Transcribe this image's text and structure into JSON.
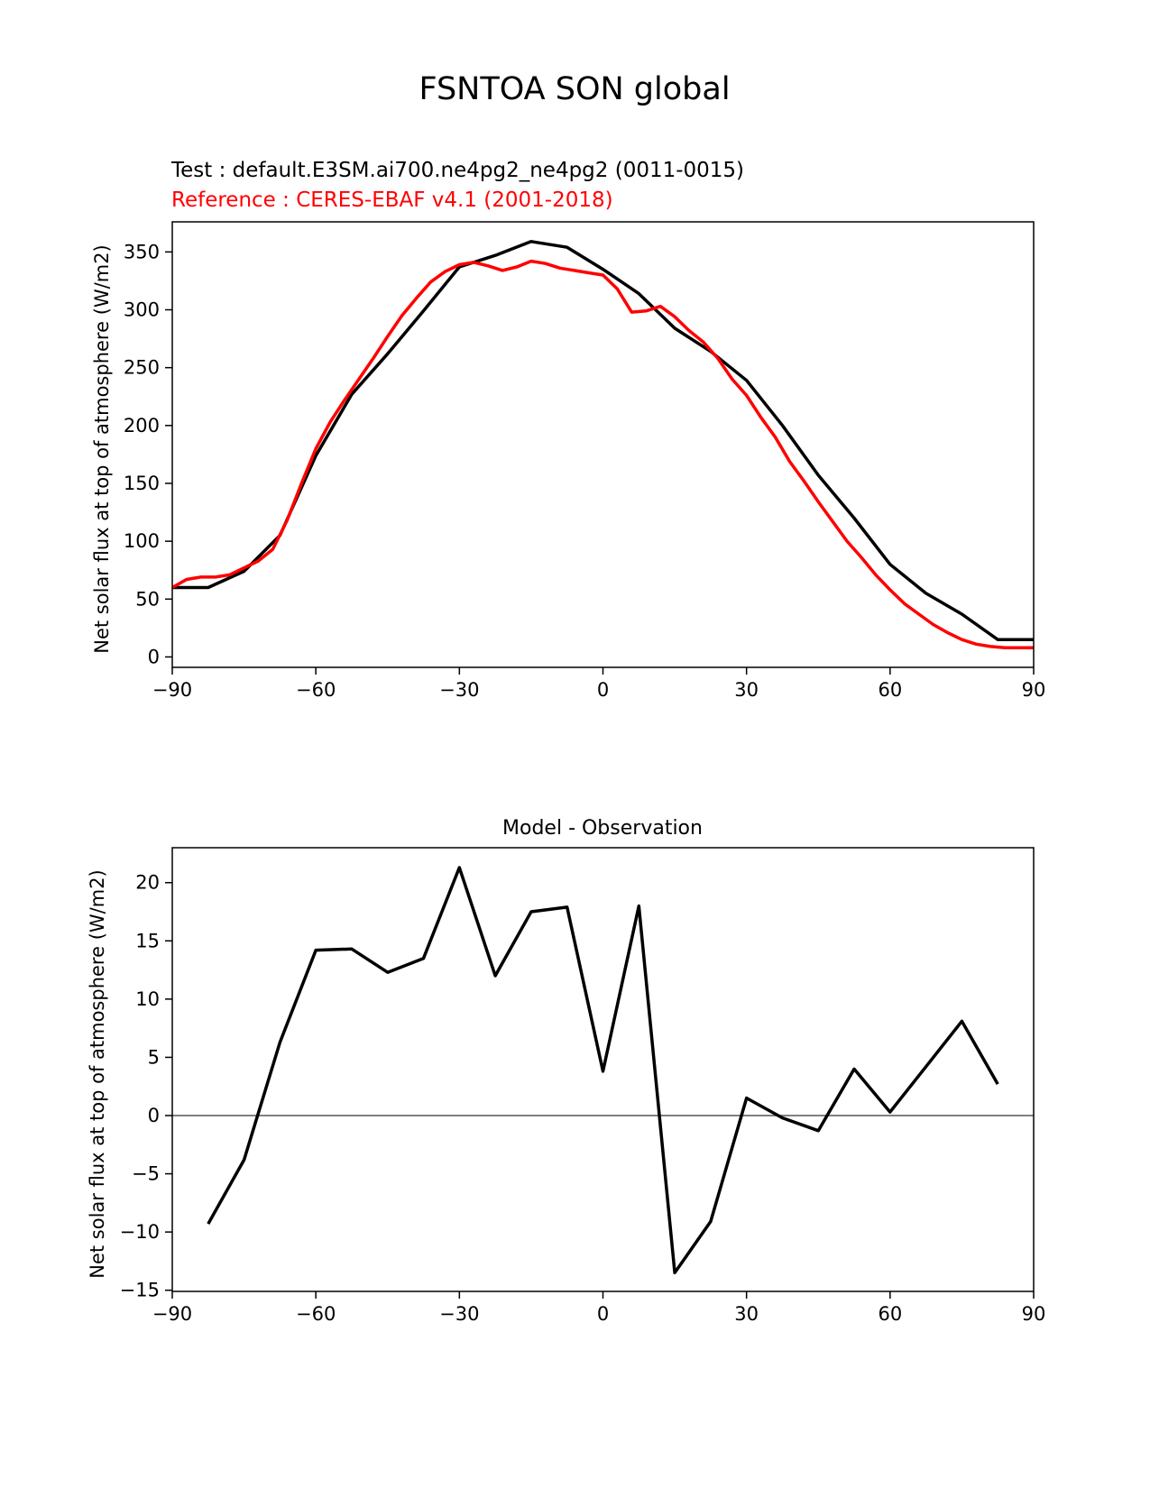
{
  "figure_title": "FSNTOA SON global",
  "test_label": "Test : default.E3SM.ai700.ne4pg2_ne4pg2 (0011-0015)",
  "reference_label": "Reference : CERES-EBAF v4.1 (2001-2018)",
  "colors": {
    "test": "#000000",
    "reference": "#ff0000",
    "zero_line": "#808080"
  },
  "chart_data": [
    {
      "type": "line",
      "title": "",
      "ylabel": "Net solar flux at top of atmosphere (W/m2)",
      "xlim": [
        -90,
        90
      ],
      "ylim": [
        -9,
        376
      ],
      "xticks": [
        -90,
        -60,
        -30,
        0,
        30,
        60,
        90
      ],
      "xtick_labels": [
        "−90",
        "−60",
        "−30",
        "0",
        "30",
        "60",
        "90"
      ],
      "yticks": [
        0,
        50,
        100,
        150,
        200,
        250,
        300,
        350
      ],
      "ytick_labels": [
        "0",
        "50",
        "100",
        "150",
        "200",
        "250",
        "300",
        "350"
      ],
      "grid": false,
      "series": [
        {
          "name": "Test : default.E3SM.ai700.ne4pg2_ne4pg2 (0011-0015)",
          "color": "#000000",
          "x": [
            -90,
            -82.5,
            -75,
            -67.5,
            -60,
            -52.5,
            -45,
            -37.5,
            -30,
            -22.5,
            -15,
            -7.5,
            0,
            7.5,
            15,
            22.5,
            30,
            37.5,
            45,
            52.5,
            60,
            67.5,
            75,
            82.5,
            90
          ],
          "y": [
            60,
            60,
            74,
            105,
            174,
            227,
            262,
            299,
            337,
            347,
            359,
            354,
            335,
            314,
            284,
            264,
            239,
            200,
            157,
            120,
            80,
            55,
            37,
            15,
            15
          ]
        },
        {
          "name": "Reference : CERES-EBAF v4.1 (2001-2018)",
          "color": "#ff0000",
          "x": [
            -90,
            -87,
            -84,
            -81,
            -78,
            -75,
            -72,
            -69,
            -66,
            -63,
            -60,
            -57,
            -54,
            -51,
            -48,
            -45,
            -42,
            -39,
            -36,
            -33,
            -30,
            -27,
            -24,
            -21,
            -18,
            -15,
            -12,
            -9,
            -6,
            -3,
            0,
            3,
            6,
            9,
            12,
            15,
            18,
            21,
            24,
            27,
            30,
            33,
            36,
            39,
            42,
            45,
            48,
            51,
            54,
            57,
            60,
            63,
            66,
            69,
            72,
            75,
            78,
            81,
            84,
            87,
            90
          ],
          "y": [
            60,
            67,
            69,
            69,
            71,
            77,
            83,
            93,
            118,
            150,
            180,
            203,
            222,
            240,
            258,
            277,
            295,
            310,
            324,
            333,
            339,
            341,
            338,
            334,
            337,
            342,
            340,
            336,
            334,
            332,
            330,
            318,
            298,
            299,
            303,
            294,
            282,
            272,
            258,
            240,
            226,
            207,
            190,
            169,
            152,
            134,
            117,
            100,
            86,
            71,
            58,
            46,
            37,
            28,
            21,
            15,
            11,
            9,
            8,
            8,
            8
          ]
        }
      ]
    },
    {
      "type": "line",
      "title": "Model - Observation",
      "ylabel": "Net solar flux at top of atmosphere (W/m2)",
      "xlim": [
        -90,
        90
      ],
      "ylim": [
        -15.1,
        23
      ],
      "xticks": [
        -90,
        -60,
        -30,
        0,
        30,
        60,
        90
      ],
      "xtick_labels": [
        "−90",
        "−60",
        "−30",
        "0",
        "30",
        "60",
        "90"
      ],
      "yticks": [
        -15,
        -10,
        -5,
        0,
        5,
        10,
        15,
        20
      ],
      "ytick_labels": [
        "−15",
        "−10",
        "−5",
        "0",
        "5",
        "10",
        "15",
        "20"
      ],
      "grid": false,
      "zero_line": true,
      "series": [
        {
          "color": "#000000",
          "x": [
            -82.5,
            -75,
            -67.5,
            -60,
            -52.5,
            -45,
            -37.5,
            -30,
            -22.5,
            -15,
            -7.5,
            0,
            7.5,
            15,
            22.5,
            30,
            37.5,
            45,
            52.5,
            60,
            67.5,
            75,
            82.5
          ],
          "y": [
            -9.3,
            -3.8,
            6.3,
            14.2,
            14.3,
            12.3,
            13.5,
            21.3,
            12,
            17.5,
            17.9,
            3.8,
            18,
            -13.5,
            -9.1,
            1.5,
            -0.2,
            -1.3,
            4,
            0.3,
            4.2,
            8.1,
            2.7
          ]
        }
      ]
    }
  ]
}
